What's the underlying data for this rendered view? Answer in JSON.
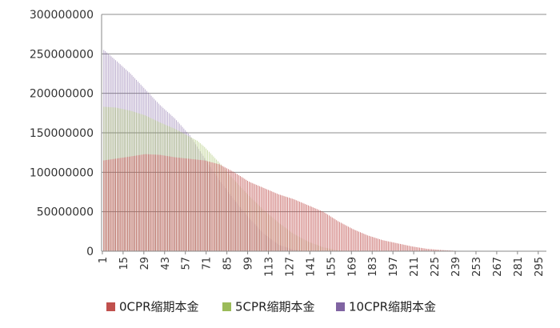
{
  "chart_data": {
    "type": "bar",
    "title": "",
    "xlabel": "",
    "ylabel": "",
    "ylim": [
      0,
      300000000
    ],
    "yticks": [
      0,
      50000000,
      100000000,
      150000000,
      200000000,
      250000000,
      300000000
    ],
    "ytick_labels": [
      "0",
      "50000000",
      "100000000",
      "150000000",
      "200000000",
      "250000000",
      "300000000"
    ],
    "x_start": 1,
    "x_count": 300,
    "xtick_labels": [
      "1",
      "15",
      "29",
      "43",
      "57",
      "71",
      "85",
      "99",
      "113",
      "127",
      "141",
      "155",
      "169",
      "183",
      "197",
      "211",
      "225",
      "239",
      "253",
      "267",
      "281",
      "295"
    ],
    "grid": true,
    "legend_position": "bottom",
    "series": [
      {
        "name": "0CPR缩期本金",
        "color": "#c0504d",
        "breakpoints": [
          [
            1,
            0
          ],
          [
            2,
            115000000
          ],
          [
            20,
            120000000
          ],
          [
            30,
            123000000
          ],
          [
            40,
            122000000
          ],
          [
            50,
            119000000
          ],
          [
            60,
            117000000
          ],
          [
            70,
            115000000
          ],
          [
            80,
            110000000
          ],
          [
            90,
            100000000
          ],
          [
            100,
            88000000
          ],
          [
            110,
            80000000
          ],
          [
            120,
            72000000
          ],
          [
            130,
            66000000
          ],
          [
            140,
            58000000
          ],
          [
            150,
            50000000
          ],
          [
            160,
            38000000
          ],
          [
            170,
            28000000
          ],
          [
            180,
            20000000
          ],
          [
            190,
            14000000
          ],
          [
            200,
            10000000
          ],
          [
            210,
            6000000
          ],
          [
            220,
            3000000
          ],
          [
            230,
            1500000
          ],
          [
            240,
            500000
          ],
          [
            250,
            0
          ],
          [
            300,
            0
          ]
        ]
      },
      {
        "name": "5CPR缩期本金",
        "color": "#9bbb59",
        "breakpoints": [
          [
            1,
            0
          ],
          [
            2,
            183000000
          ],
          [
            10,
            182000000
          ],
          [
            20,
            178000000
          ],
          [
            30,
            172000000
          ],
          [
            40,
            163000000
          ],
          [
            50,
            155000000
          ],
          [
            60,
            145000000
          ],
          [
            65,
            140000000
          ],
          [
            70,
            132000000
          ],
          [
            80,
            112000000
          ],
          [
            90,
            90000000
          ],
          [
            100,
            70000000
          ],
          [
            110,
            52000000
          ],
          [
            120,
            36000000
          ],
          [
            130,
            22000000
          ],
          [
            140,
            12000000
          ],
          [
            150,
            5000000
          ],
          [
            160,
            1000000
          ],
          [
            170,
            0
          ],
          [
            300,
            0
          ]
        ]
      },
      {
        "name": "10CPR缩期本金",
        "color": "#8064a2",
        "breakpoints": [
          [
            1,
            0
          ],
          [
            2,
            255000000
          ],
          [
            10,
            242000000
          ],
          [
            20,
            225000000
          ],
          [
            30,
            205000000
          ],
          [
            40,
            185000000
          ],
          [
            50,
            168000000
          ],
          [
            60,
            147000000
          ],
          [
            70,
            118000000
          ],
          [
            80,
            90000000
          ],
          [
            90,
            65000000
          ],
          [
            100,
            42000000
          ],
          [
            110,
            22000000
          ],
          [
            120,
            8000000
          ],
          [
            130,
            2000000
          ],
          [
            140,
            0
          ],
          [
            300,
            0
          ]
        ]
      }
    ]
  }
}
